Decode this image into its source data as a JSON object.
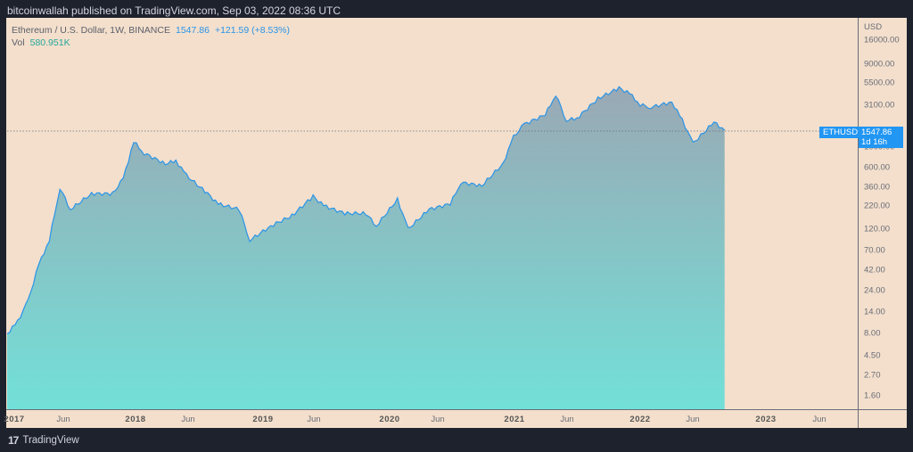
{
  "header": {
    "published": "bitcoinwallah published on TradingView.com, Sep 03, 2022 08:36 UTC"
  },
  "legend": {
    "symbol": "Ethereum / U.S. Dollar, 1W, BINANCE",
    "price": "1547.86",
    "change": "+121.59 (+8.53%)",
    "vol_label": "Vol",
    "vol_value": "580.951K"
  },
  "price_tag": {
    "symbol": "ETHUSD",
    "price": "1547.86",
    "countdown": "1d 16h"
  },
  "footer": {
    "brand": "TradingView",
    "logo": "17"
  },
  "colors": {
    "background": "#f3dfcc",
    "line": "#2a94e8",
    "fill_top": "#9aa8b4",
    "fill_bottom": "#72e0d8",
    "tag": "#2196f3",
    "frame": "#1e222d"
  },
  "chart_data": {
    "type": "area",
    "title": "Ethereum / U.S. Dollar, 1W, BINANCE",
    "scale": "log",
    "ylabel": "USD",
    "y_ticks": [
      "16000.00",
      "9000.00",
      "5500.00",
      "3100.00",
      "1000.00",
      "600.00",
      "360.00",
      "220.00",
      "120.00",
      "70.00",
      "42.00",
      "24.00",
      "14.00",
      "8.00",
      "4.50",
      "2.70",
      "1.60"
    ],
    "x_ticks": [
      "2017",
      "Jun",
      "2018",
      "Jun",
      "2019",
      "Jun",
      "2020",
      "Jun",
      "2021",
      "Jun",
      "2022",
      "Jun",
      "2023",
      "Jun"
    ],
    "ylim": [
      1.3,
      22000
    ],
    "series": [
      {
        "name": "ETHUSD close (approx)",
        "x": [
          "2017-01",
          "2017-02",
          "2017-03",
          "2017-04",
          "2017-05",
          "2017-06",
          "2017-07",
          "2017-09",
          "2017-11",
          "2017-12",
          "2018-01",
          "2018-02",
          "2018-04",
          "2018-05",
          "2018-06",
          "2018-08",
          "2018-09",
          "2018-11",
          "2018-12",
          "2019-02",
          "2019-04",
          "2019-06",
          "2019-07",
          "2019-09",
          "2019-11",
          "2019-12",
          "2020-02",
          "2020-03",
          "2020-05",
          "2020-07",
          "2020-08",
          "2020-10",
          "2020-12",
          "2021-01",
          "2021-02",
          "2021-04",
          "2021-05",
          "2021-06",
          "2021-07",
          "2021-09",
          "2021-11",
          "2021-12",
          "2022-01",
          "2022-02",
          "2022-04",
          "2022-05",
          "2022-06",
          "2022-08",
          "2022-09"
        ],
        "values": [
          8,
          11,
          19,
          48,
          90,
          350,
          200,
          300,
          300,
          440,
          1150,
          850,
          650,
          700,
          480,
          300,
          230,
          200,
          90,
          130,
          170,
          280,
          220,
          180,
          180,
          130,
          260,
          120,
          200,
          230,
          400,
          370,
          650,
          1300,
          1800,
          2300,
          3900,
          2000,
          2100,
          3500,
          4600,
          4000,
          3000,
          2800,
          3200,
          2000,
          1100,
          1900,
          1547.86
        ]
      },
      {
        "name": "Vol",
        "current": "580.951K"
      }
    ]
  }
}
